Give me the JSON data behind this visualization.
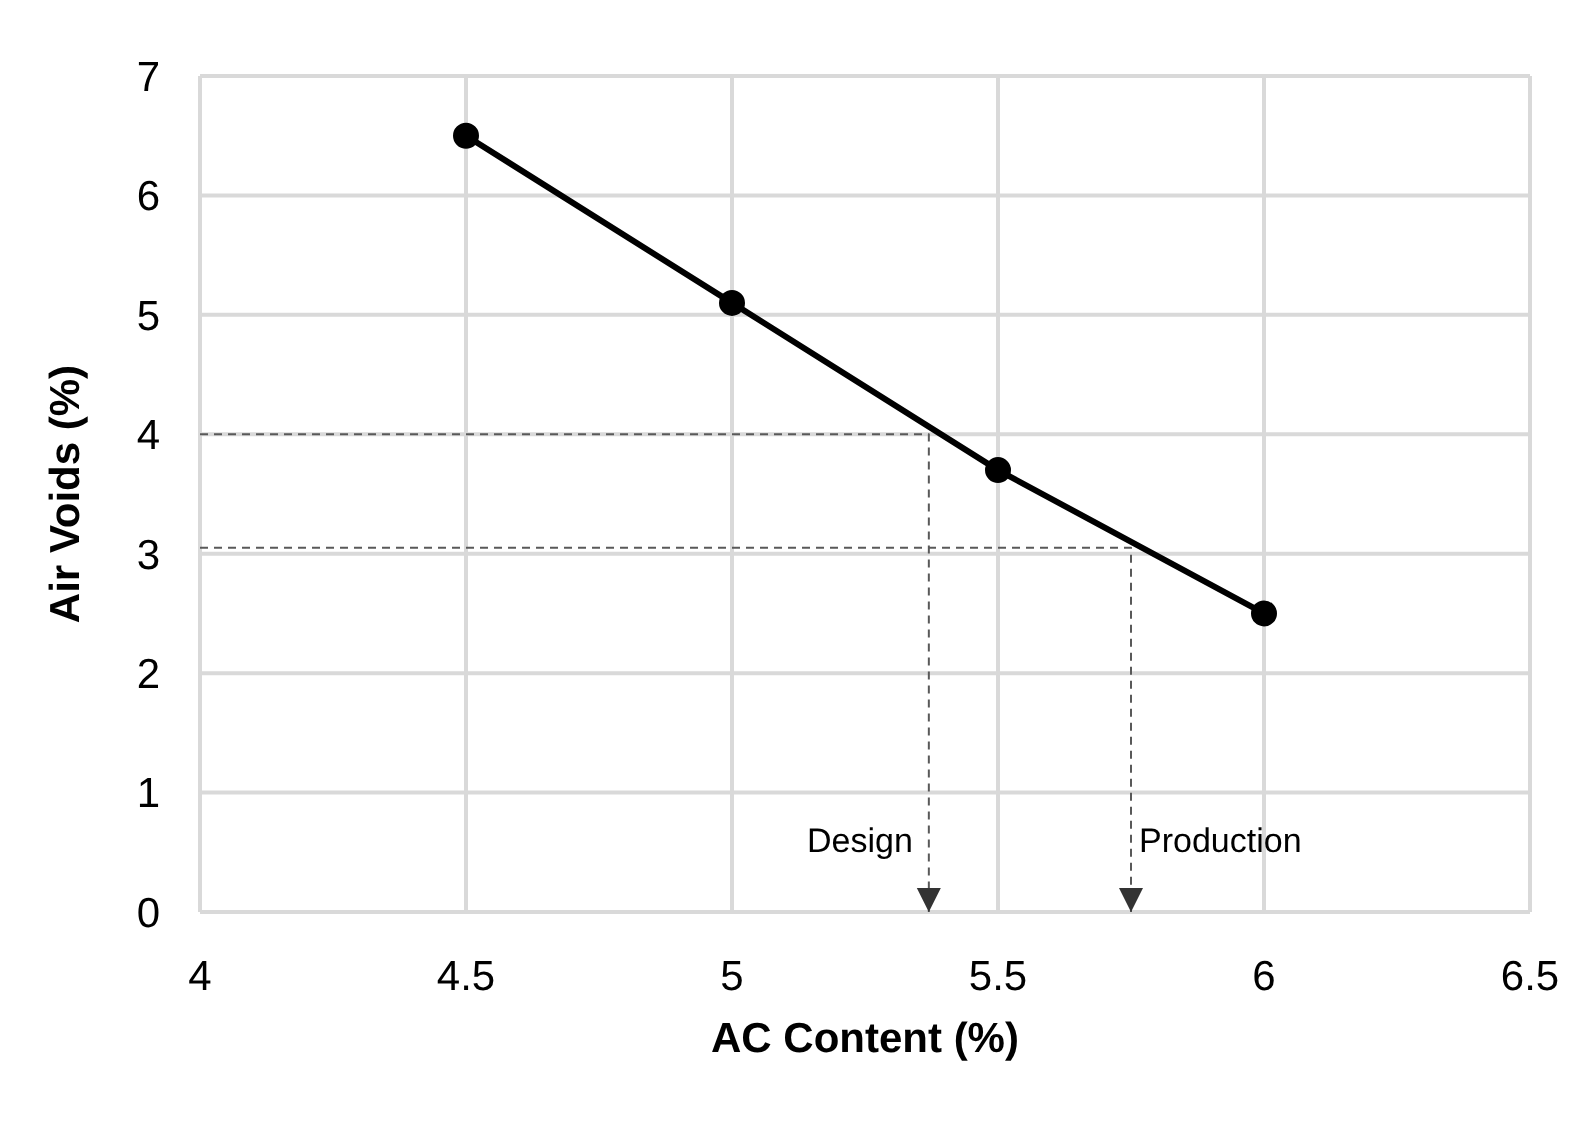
{
  "chart_data": {
    "type": "line",
    "xlabel": "AC Content (%)",
    "ylabel": "Air Voids (%)",
    "series": [
      {
        "color": "#000000",
        "x": [
          4.5,
          5,
          5.5,
          6
        ],
        "values": [
          6.5,
          5.1,
          3.7,
          2.5
        ],
        "marker": "circle",
        "line_style": "solid"
      },
      {
        "color": "#595959",
        "x": [
          4,
          5.37,
          5.37
        ],
        "values": [
          4,
          4,
          0
        ],
        "marker": "none",
        "line_style": "dashed"
      },
      {
        "color": "#595959",
        "x": [
          4,
          5.75,
          5.75
        ],
        "values": [
          3.05,
          3.05,
          0
        ],
        "marker": "none",
        "line_style": "dashed"
      }
    ],
    "annotations": [
      "Design",
      "Production"
    ],
    "xlim": [
      4,
      6.5
    ],
    "xticks": [
      4,
      4.5,
      5,
      5.5,
      6,
      6.5
    ],
    "ylim": [
      0,
      7
    ],
    "yticks": [
      0,
      1,
      2,
      3,
      4,
      5,
      6,
      7
    ],
    "grid": true
  }
}
